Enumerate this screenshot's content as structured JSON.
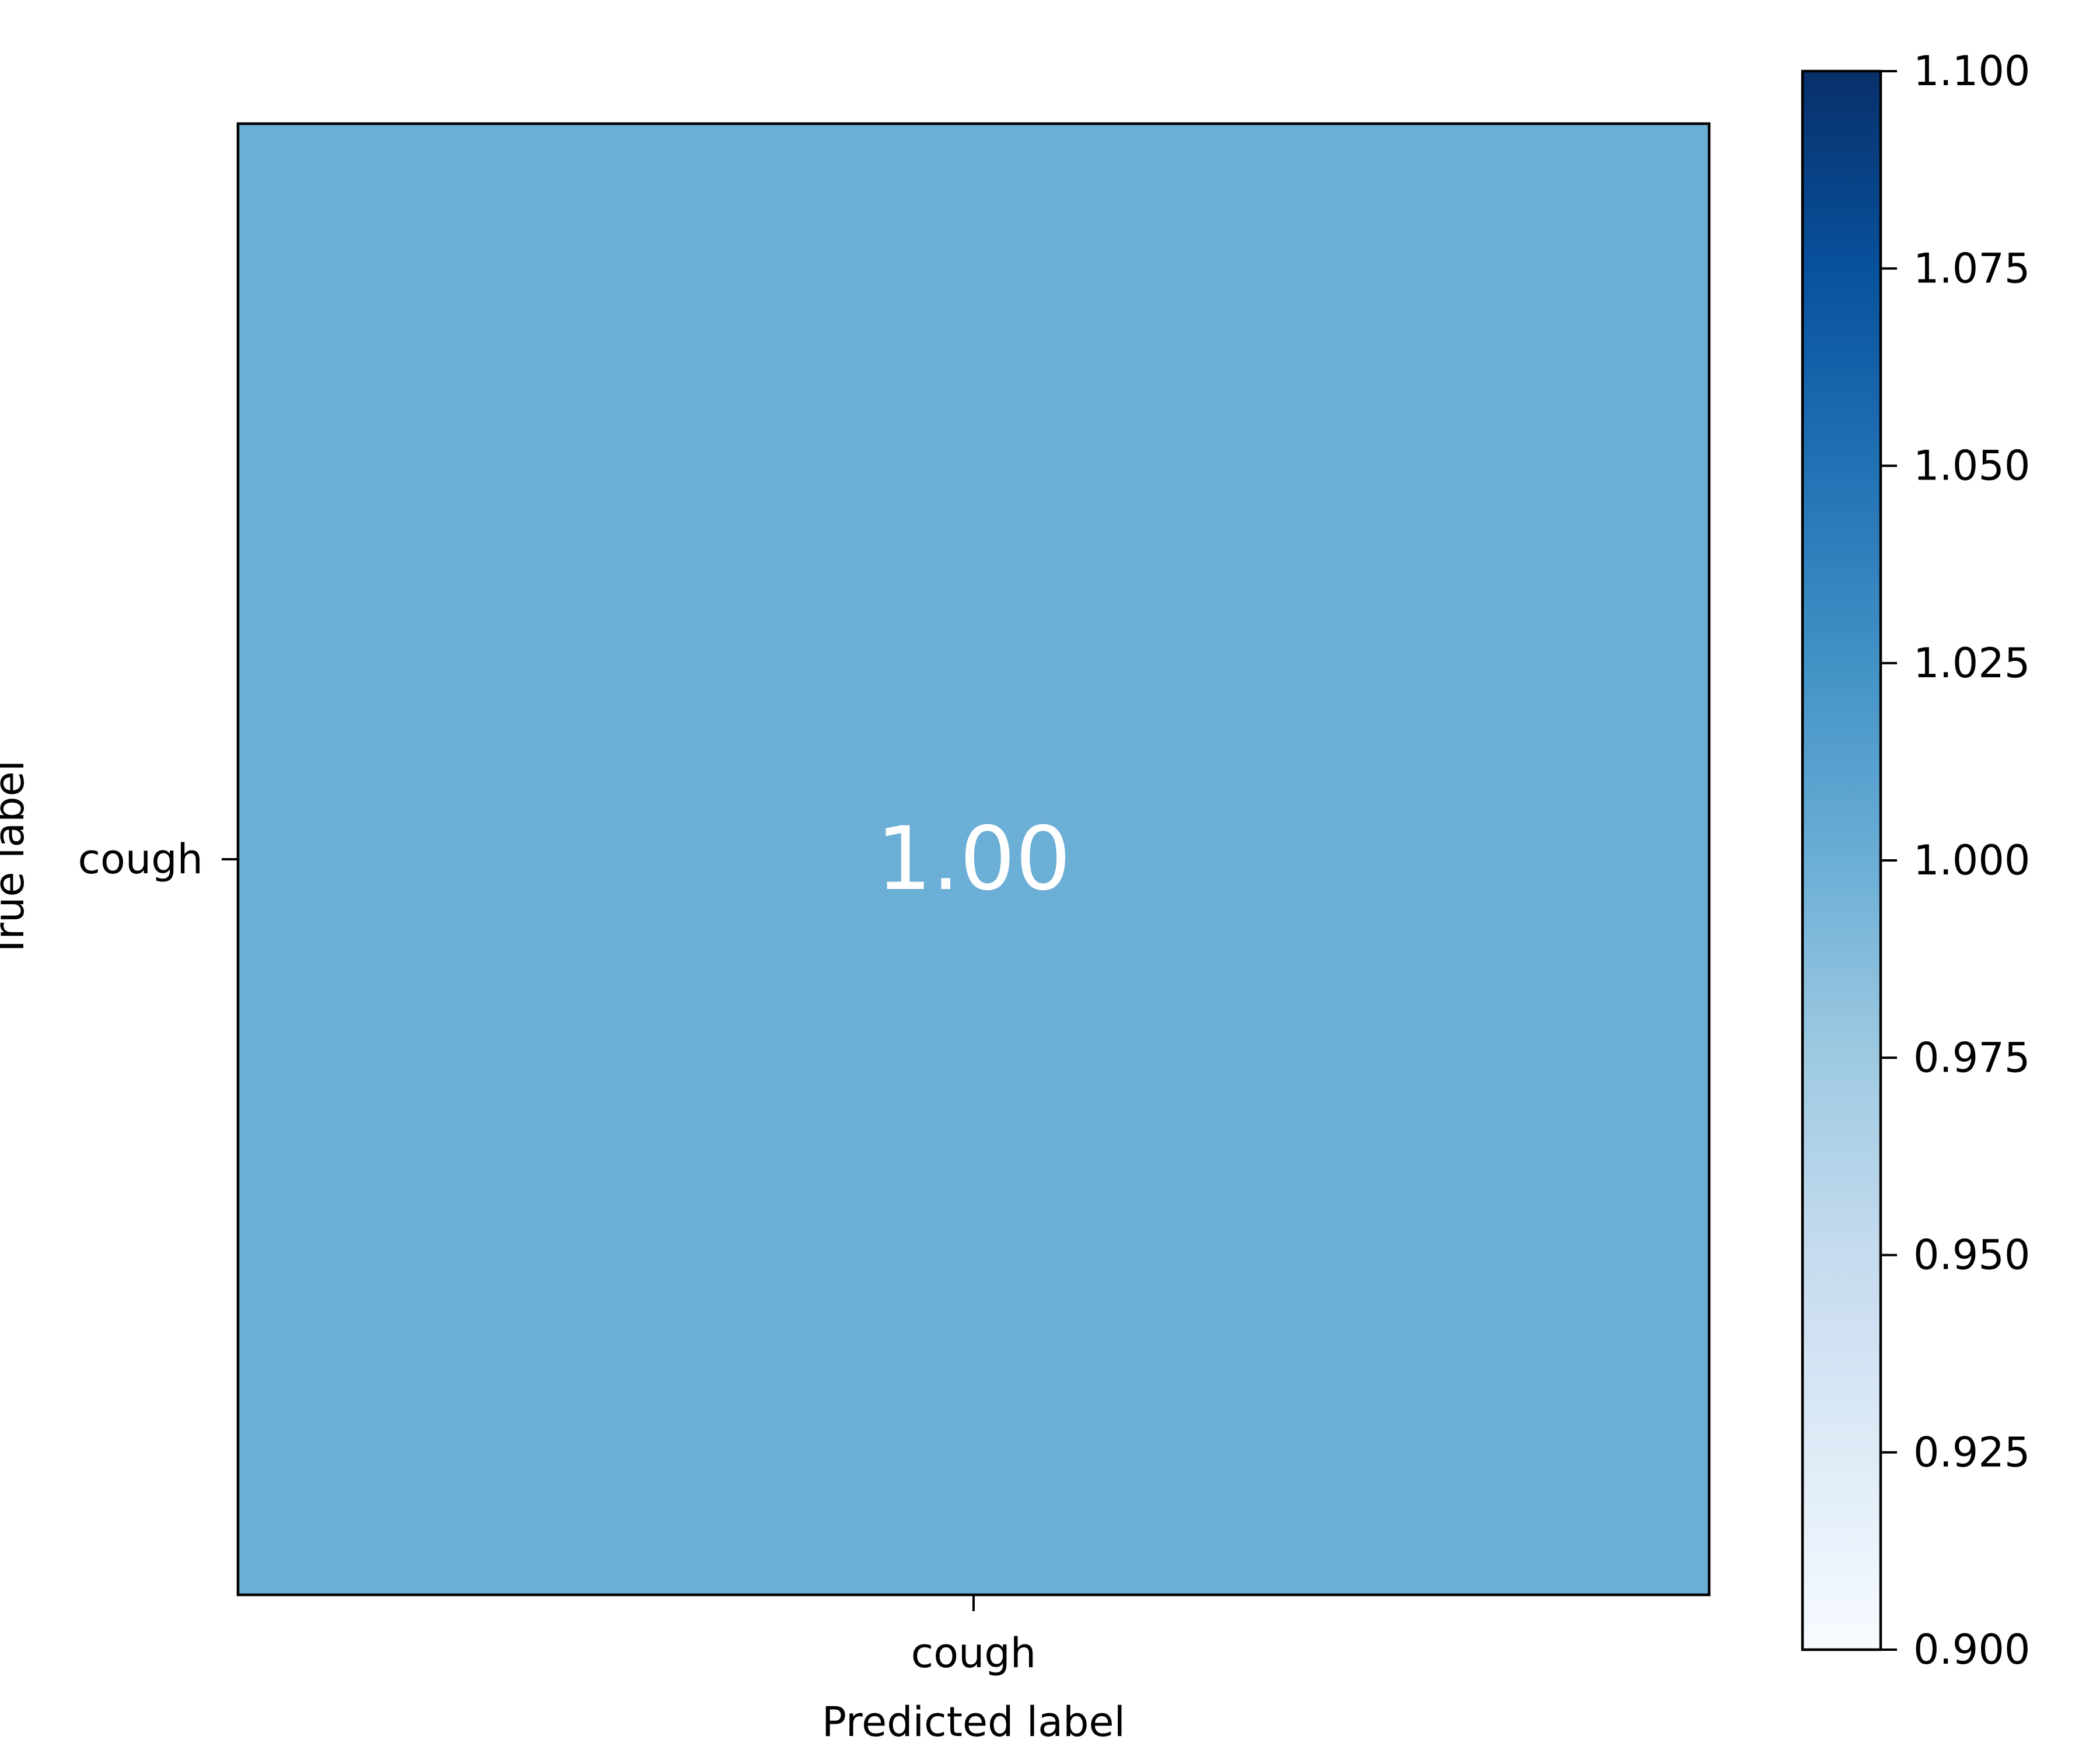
{
  "chart_data": {
    "type": "heatmap",
    "title": "",
    "xlabel": "Predicted label",
    "ylabel": "True label",
    "x_categories": [
      "cough"
    ],
    "y_categories": [
      "cough"
    ],
    "values": [
      [
        1.0
      ]
    ],
    "cell_labels": [
      [
        "1.00"
      ]
    ],
    "colormap": "Blues",
    "colorbar": {
      "range": [
        0.9,
        1.1
      ],
      "ticks": [
        0.9,
        0.925,
        0.95,
        0.975,
        1.0,
        1.025,
        1.05,
        1.075,
        1.1
      ],
      "tick_labels": [
        "0.900",
        "0.925",
        "0.950",
        "0.975",
        "1.000",
        "1.025",
        "1.050",
        "1.075",
        "1.100"
      ]
    },
    "colors": {
      "cell": "#6baed6",
      "cell_text": "#ffffff",
      "colorbar_stops": [
        "#f7fbff",
        "#deebf7",
        "#c6dbef",
        "#9ecae1",
        "#6baed6",
        "#4292c6",
        "#2171b5",
        "#08519c",
        "#08306b"
      ]
    }
  }
}
